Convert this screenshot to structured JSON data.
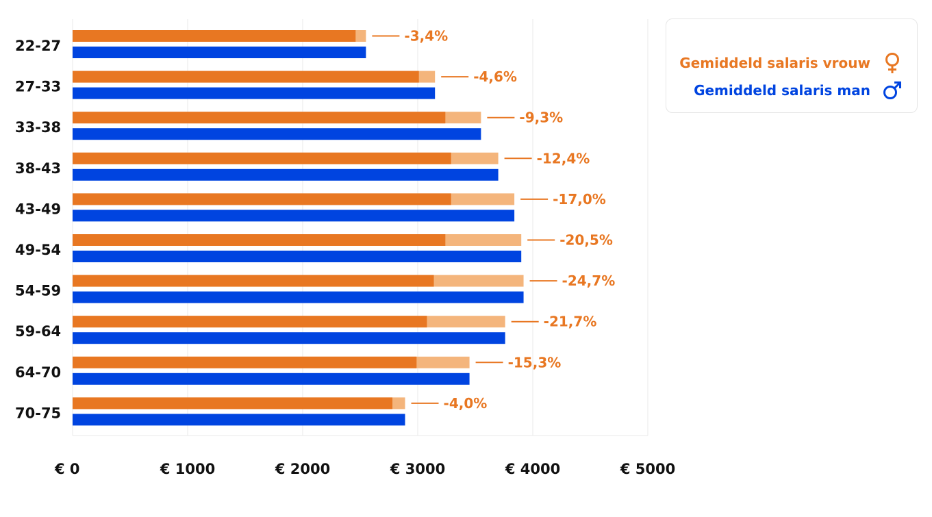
{
  "colors": {
    "female": "#e87722",
    "female_gap": "#f4b57c",
    "male": "#0044e0",
    "grid": "#e9e9e9",
    "text": "#111111"
  },
  "legend": {
    "female": {
      "label": "Gemiddeld salaris vrouw",
      "icon": "female-symbol-icon"
    },
    "male": {
      "label": "Gemiddeld salaris man",
      "icon": "male-symbol-icon"
    }
  },
  "chart_data": {
    "type": "bar",
    "orientation": "horizontal",
    "categories": [
      "22-27",
      "27-33",
      "33-38",
      "38-43",
      "43-49",
      "49-54",
      "54-59",
      "59-64",
      "64-70",
      "70-75"
    ],
    "series": [
      {
        "name": "Gemiddeld salaris vrouw",
        "values": [
          2460,
          3010,
          3240,
          3290,
          3290,
          3240,
          3140,
          3080,
          2990,
          2780
        ]
      },
      {
        "name": "Gemiddeld salaris man",
        "values": [
          2550,
          3150,
          3550,
          3700,
          3840,
          3900,
          3920,
          3760,
          3450,
          2890
        ]
      }
    ],
    "gap_labels": [
      "-3,4%",
      "-4,6%",
      "-9,3%",
      "-12,4%",
      "-17,0%",
      "-20,5%",
      "-24,7%",
      "-21,7%",
      "-15,3%",
      "-4,0%"
    ],
    "x_ticks": [
      "€ 0",
      "€ 1000",
      "€ 2000",
      "€ 3000",
      "€ 4000",
      "€ 5000"
    ],
    "x_tick_values": [
      0,
      1000,
      2000,
      3000,
      4000,
      5000
    ],
    "xlim": [
      0,
      5000
    ],
    "grid": true,
    "legend_position": "top-right"
  }
}
